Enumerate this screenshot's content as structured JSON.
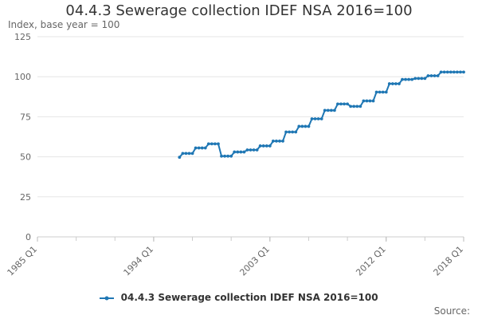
{
  "chart_data": {
    "type": "line",
    "title": "04.4.3 Sewerage collection IDEF NSA 2016=100",
    "ylabel": "Index, base year = 100",
    "ylim": [
      0,
      125
    ],
    "yticks": [
      0,
      25,
      50,
      75,
      100,
      125
    ],
    "xlim": [
      "1985 Q1",
      "2018 Q1"
    ],
    "xticks": [
      "1985 Q1",
      "1994 Q1",
      "2003 Q1",
      "2012 Q1",
      "2018 Q1"
    ],
    "grid": true,
    "legend_position": "bottom",
    "color": "#1f77b4",
    "series": [
      {
        "name": "04.4.3 Sewerage collection IDEF NSA 2016=100",
        "x": [
          "1996 Q1",
          "1996 Q2",
          "1996 Q3",
          "1996 Q4",
          "1997 Q1",
          "1997 Q2",
          "1997 Q3",
          "1997 Q4",
          "1998 Q1",
          "1998 Q2",
          "1998 Q3",
          "1998 Q4",
          "1999 Q1",
          "1999 Q2",
          "1999 Q3",
          "1999 Q4",
          "2000 Q1",
          "2000 Q2",
          "2000 Q3",
          "2000 Q4",
          "2001 Q1",
          "2001 Q2",
          "2001 Q3",
          "2001 Q4",
          "2002 Q1",
          "2002 Q2",
          "2002 Q3",
          "2002 Q4",
          "2003 Q1",
          "2003 Q2",
          "2003 Q3",
          "2003 Q4",
          "2004 Q1",
          "2004 Q2",
          "2004 Q3",
          "2004 Q4",
          "2005 Q1",
          "2005 Q2",
          "2005 Q3",
          "2005 Q4",
          "2006 Q1",
          "2006 Q2",
          "2006 Q3",
          "2006 Q4",
          "2007 Q1",
          "2007 Q2",
          "2007 Q3",
          "2007 Q4",
          "2008 Q1",
          "2008 Q2",
          "2008 Q3",
          "2008 Q4",
          "2009 Q1",
          "2009 Q2",
          "2009 Q3",
          "2009 Q4",
          "2010 Q1",
          "2010 Q2",
          "2010 Q3",
          "2010 Q4",
          "2011 Q1",
          "2011 Q2",
          "2011 Q3",
          "2011 Q4",
          "2012 Q1",
          "2012 Q2",
          "2012 Q3",
          "2012 Q4",
          "2013 Q1",
          "2013 Q2",
          "2013 Q3",
          "2013 Q4",
          "2014 Q1",
          "2014 Q2",
          "2014 Q3",
          "2014 Q4",
          "2015 Q1",
          "2015 Q2",
          "2015 Q3",
          "2015 Q4",
          "2016 Q1",
          "2016 Q2",
          "2016 Q3",
          "2016 Q4",
          "2017 Q1",
          "2017 Q2",
          "2017 Q3",
          "2017 Q4",
          "2018 Q1"
        ],
        "values": [
          49.7,
          52.1,
          52.1,
          52.1,
          52.1,
          55.5,
          55.5,
          55.5,
          55.5,
          58.1,
          58.1,
          58.1,
          58.1,
          50.4,
          50.4,
          50.4,
          50.4,
          53.0,
          53.0,
          53.0,
          53.0,
          54.3,
          54.3,
          54.3,
          54.3,
          56.8,
          56.8,
          56.8,
          56.8,
          59.8,
          59.8,
          59.8,
          59.8,
          65.5,
          65.5,
          65.5,
          65.5,
          69.0,
          69.0,
          69.0,
          69.0,
          73.7,
          73.7,
          73.7,
          73.7,
          79.0,
          79.0,
          79.0,
          79.0,
          83.0,
          83.0,
          83.0,
          83.0,
          81.5,
          81.5,
          81.5,
          81.5,
          84.9,
          84.9,
          84.9,
          84.9,
          90.4,
          90.4,
          90.4,
          90.4,
          95.6,
          95.6,
          95.6,
          95.6,
          98.3,
          98.3,
          98.3,
          98.3,
          98.9,
          98.9,
          98.9,
          98.9,
          100.6,
          100.6,
          100.6,
          100.6,
          102.9,
          102.9,
          102.9,
          102.9,
          102.9,
          102.9,
          102.9,
          102.9
        ]
      }
    ]
  },
  "source_label": "Source:"
}
